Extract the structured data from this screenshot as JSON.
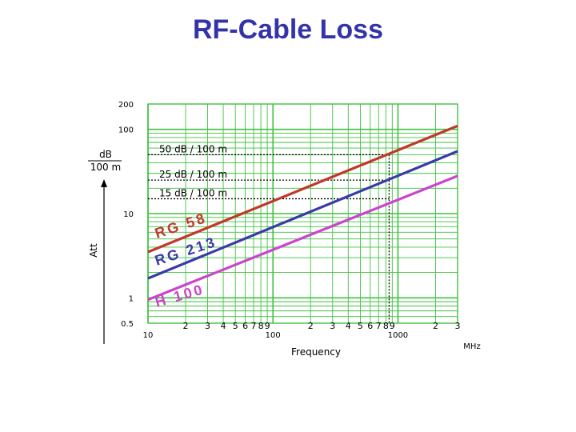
{
  "slide": {
    "title": "RF-Cable Loss"
  },
  "chart_data": {
    "type": "line",
    "title": "RF-Cable Loss",
    "xlabel": "Frequency",
    "x_unit": "MHz",
    "ylabel": "Att",
    "y_unit_num": "dB",
    "y_unit_den": "100 m",
    "x_scale": "log",
    "y_scale": "log",
    "xlim": [
      10,
      3000
    ],
    "ylim": [
      0.5,
      200
    ],
    "grid": true,
    "x_ticks": [
      {
        "v": 10,
        "label": "10"
      },
      {
        "v": 20,
        "label": "2"
      },
      {
        "v": 30,
        "label": "3"
      },
      {
        "v": 40,
        "label": "4"
      },
      {
        "v": 50,
        "label": "5"
      },
      {
        "v": 60,
        "label": "6"
      },
      {
        "v": 70,
        "label": "7"
      },
      {
        "v": 80,
        "label": "8"
      },
      {
        "v": 90,
        "label": "9"
      },
      {
        "v": 100,
        "label": "100"
      },
      {
        "v": 200,
        "label": "2"
      },
      {
        "v": 300,
        "label": "3"
      },
      {
        "v": 400,
        "label": "4"
      },
      {
        "v": 500,
        "label": "5"
      },
      {
        "v": 600,
        "label": "6"
      },
      {
        "v": 700,
        "label": "7"
      },
      {
        "v": 800,
        "label": "8"
      },
      {
        "v": 900,
        "label": "9"
      },
      {
        "v": 1000,
        "label": "1000"
      },
      {
        "v": 2000,
        "label": "2"
      },
      {
        "v": 3000,
        "label": "3"
      }
    ],
    "y_ticks": [
      {
        "v": 200,
        "label": "200"
      },
      {
        "v": 100,
        "label": "100"
      },
      {
        "v": 10,
        "label": "10"
      },
      {
        "v": 1,
        "label": "1"
      },
      {
        "v": 0.5,
        "label": "0.5"
      }
    ],
    "series": [
      {
        "name": "RG 58",
        "color": "#c0392b",
        "x": [
          10,
          3000
        ],
        "y": [
          3.5,
          110
        ]
      },
      {
        "name": "RG 213",
        "color": "#3a3aa8",
        "x": [
          10,
          3000
        ],
        "y": [
          1.7,
          55
        ]
      },
      {
        "name": "H 100",
        "color": "#cc44cc",
        "x": [
          10,
          3000
        ],
        "y": [
          0.95,
          28
        ]
      }
    ],
    "annotations": [
      {
        "text": "50 dB / 100 m",
        "y": 50,
        "x_end": 850
      },
      {
        "text": "25 dB / 100 m",
        "y": 25,
        "x_end": 850
      },
      {
        "text": "15 dB / 100 m",
        "y": 15,
        "x_end": 850
      }
    ]
  }
}
